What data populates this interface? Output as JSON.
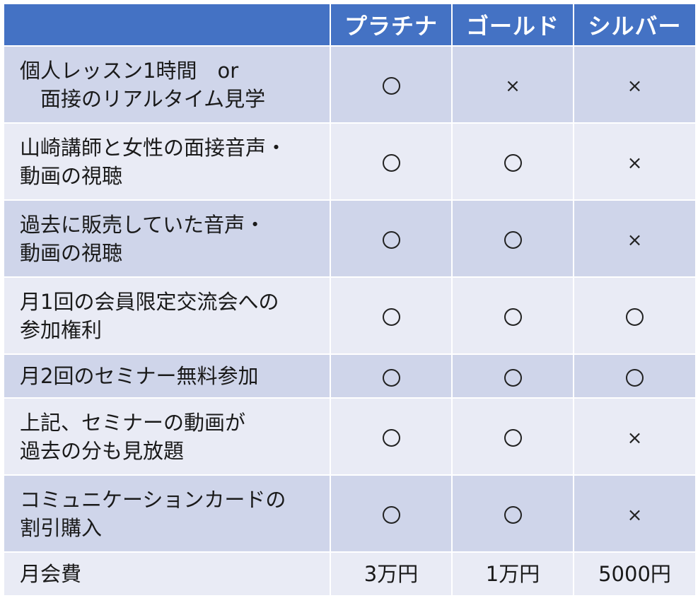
{
  "header": {
    "corner": "",
    "plans": [
      "プラチナ",
      "ゴールド",
      "シルバー"
    ]
  },
  "colors": {
    "header_bg": "#4472c4",
    "row_dark": "#cfd5ea",
    "row_light": "#e9ebf5"
  },
  "icons": {
    "yes": "circle-icon",
    "no": "cross-icon"
  },
  "rows": [
    {
      "feature": [
        "個人レッスン1時間　or",
        "　面接のリアルタイム見学"
      ],
      "marks": [
        "yes",
        "no",
        "no"
      ],
      "mark_labels": [
        "",
        "×",
        "×"
      ]
    },
    {
      "feature": [
        "山崎講師と女性の面接音声・",
        "動画の視聴"
      ],
      "marks": [
        "yes",
        "yes",
        "no"
      ],
      "mark_labels": [
        "",
        "",
        "×"
      ]
    },
    {
      "feature": [
        "過去に販売していた音声・",
        "動画の視聴"
      ],
      "marks": [
        "yes",
        "yes",
        "no"
      ],
      "mark_labels": [
        "",
        "",
        "×"
      ]
    },
    {
      "feature": [
        "月1回の会員限定交流会への",
        "参加権利"
      ],
      "marks": [
        "yes",
        "yes",
        "yes"
      ],
      "mark_labels": [
        "",
        "",
        ""
      ]
    },
    {
      "feature": [
        "月2回のセミナー無料参加"
      ],
      "marks": [
        "yes",
        "yes",
        "yes"
      ],
      "mark_labels": [
        "",
        "",
        ""
      ]
    },
    {
      "feature": [
        "上記、セミナーの動画が",
        "過去の分も見放題"
      ],
      "marks": [
        "yes",
        "yes",
        "no"
      ],
      "mark_labels": [
        "",
        "",
        "×"
      ]
    },
    {
      "feature": [
        "コミュニケーションカードの",
        "割引購入"
      ],
      "marks": [
        "yes",
        "yes",
        "no"
      ],
      "mark_labels": [
        "",
        "",
        "×"
      ]
    }
  ],
  "fee_row": {
    "label": "月会費",
    "values": [
      "3万円",
      "1万円",
      "5000円"
    ]
  }
}
